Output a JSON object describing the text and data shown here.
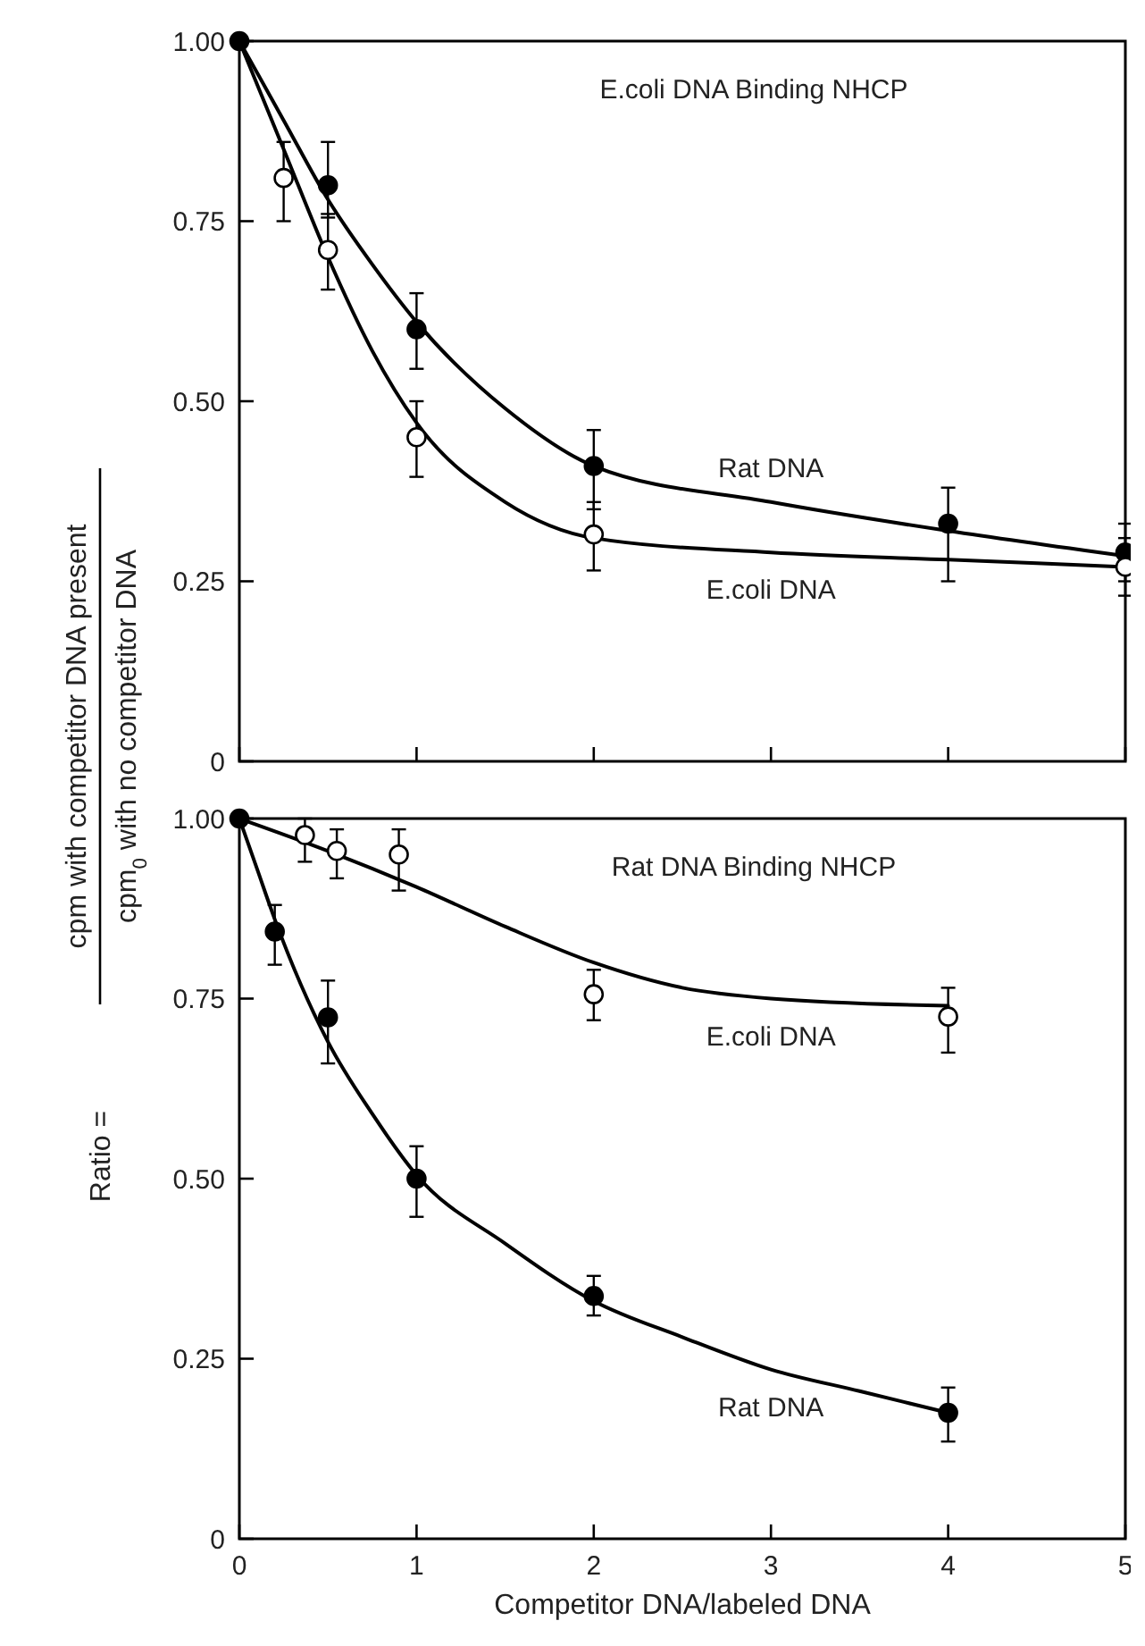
{
  "chart_data": [
    {
      "type": "line",
      "title": "E.coli DNA Binding NHCP",
      "ylabel": "Ratio = cpm with competitor DNA present cpm$_{0}$ with no competitor DNA",
      "xlim": [
        0,
        5
      ],
      "xticks": [
        0,
        1,
        2,
        3,
        4,
        5
      ],
      "ylim": [
        0,
        1
      ],
      "yticks": [
        0,
        {
          "value": 0.25,
          "label": "0.25"
        },
        {
          "value": 0.5,
          "label": "0.50"
        },
        {
          "value": 0.75,
          "label": "0.75"
        },
        {
          "value": 1,
          "label": "1.00"
        }
      ],
      "tick_labels": "y",
      "grid": false,
      "legend": false,
      "series": [
        {
          "type": "line",
          "name": "Rat DNA",
          "color": "#000000",
          "x": [
            0,
            0.25,
            0.5,
            0.75,
            1,
            1.5,
            2,
            3,
            4,
            5
          ],
          "values": [
            1.0,
            0.89,
            0.78,
            0.69,
            0.61,
            0.49,
            0.41,
            0.36,
            0.32,
            0.285
          ]
        },
        {
          "type": "line",
          "name": "E.coli DNA",
          "color": "#000000",
          "x": [
            0,
            0.25,
            0.5,
            0.75,
            1,
            1.5,
            2,
            3,
            4,
            5
          ],
          "values": [
            1.0,
            0.85,
            0.7,
            0.57,
            0.47,
            0.36,
            0.31,
            0.29,
            0.28,
            0.27
          ]
        },
        {
          "type": "scatter",
          "marker": "circle",
          "color": "#000000",
          "x": [
            0,
            0.5,
            1,
            2,
            4,
            5
          ],
          "values": [
            1.0,
            0.8,
            0.6,
            0.41,
            0.33,
            0.29
          ],
          "errors": [
            null,
            [
              0.755,
              0.86
            ],
            [
              0.545,
              0.65
            ],
            [
              0.35,
              0.46
            ],
            [
              0.25,
              0.38
            ],
            [
              0.25,
              0.33
            ]
          ]
        },
        {
          "type": "scatter",
          "marker": "circle",
          "color": "#ffffff",
          "x": [
            0.25,
            0.5,
            1,
            2,
            5
          ],
          "values": [
            0.81,
            0.71,
            0.45,
            0.315,
            0.27
          ],
          "errors": [
            [
              0.75,
              0.86
            ],
            [
              0.655,
              0.76
            ],
            [
              0.395,
              0.5
            ],
            [
              0.265,
              0.36
            ],
            [
              0.23,
              0.31
            ]
          ]
        }
      ]
    },
    {
      "type": "line",
      "title": "Rat DNA Binding NHCP",
      "xlabel": "Competitor DNA/labeled DNA",
      "xlim": [
        0,
        5
      ],
      "xticks": [
        0,
        1,
        2,
        3,
        4,
        5
      ],
      "ylim": [
        0,
        1
      ],
      "yticks": [
        0,
        {
          "value": 0.25,
          "label": "0.25"
        },
        {
          "value": 0.5,
          "label": "0.50"
        },
        {
          "value": 0.75,
          "label": "0.75"
        },
        {
          "value": 1,
          "label": "1.00"
        }
      ],
      "grid": false,
      "legend": false,
      "series": [
        {
          "type": "line",
          "name": "E.coli DNA",
          "color": "#000000",
          "x": [
            0,
            0.5,
            1,
            1.5,
            2,
            2.5,
            3,
            4
          ],
          "values": [
            1.0,
            0.955,
            0.905,
            0.85,
            0.8,
            0.765,
            0.75,
            0.74
          ]
        },
        {
          "type": "line",
          "name": "Rat DNA",
          "color": "#000000",
          "x": [
            0,
            0.1,
            0.2,
            0.5,
            0.75,
            1,
            1.5,
            2,
            2.5,
            3,
            3.5,
            4
          ],
          "values": [
            1.0,
            0.93,
            0.86,
            0.69,
            0.59,
            0.505,
            0.41,
            0.33,
            0.28,
            0.235,
            0.205,
            0.175
          ]
        },
        {
          "type": "scatter",
          "marker": "circle",
          "color": "#ffffff",
          "x": [
            0.37,
            0.55,
            0.9,
            2,
            4
          ],
          "values": [
            0.977,
            0.955,
            0.95,
            0.756,
            0.725
          ],
          "errors": [
            [
              0.94,
              1.0
            ],
            [
              0.917,
              0.985
            ],
            [
              0.9,
              0.985
            ],
            [
              0.72,
              0.79
            ],
            [
              0.675,
              0.765
            ]
          ]
        },
        {
          "type": "scatter",
          "marker": "circle",
          "color": "#000000",
          "x": [
            0,
            0.2,
            0.5,
            1,
            2,
            4
          ],
          "values": [
            1.0,
            0.843,
            0.724,
            0.5,
            0.337,
            0.175
          ],
          "errors": [
            null,
            [
              0.797,
              0.88
            ],
            [
              0.66,
              0.775
            ],
            [
              0.447,
              0.545
            ],
            [
              0.31,
              0.365
            ],
            [
              0.135,
              0.21
            ]
          ]
        }
      ]
    }
  ]
}
